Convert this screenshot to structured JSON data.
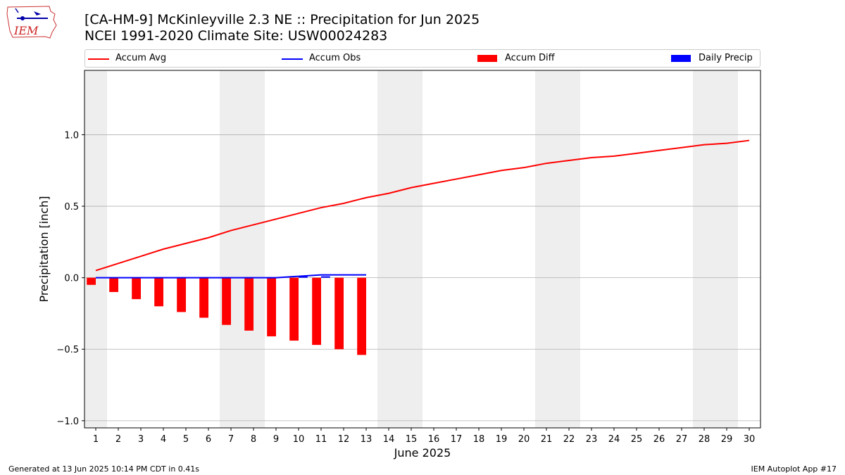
{
  "header": {
    "title_line1": "[CA-HM-9] McKinleyville 2.3 NE :: Precipitation for Jun 2025",
    "title_line2": "NCEI 1991-2020 Climate Site: USW00024283"
  },
  "logo": {
    "text": "IEM",
    "icon": "iem-iowa-state-logo-icon"
  },
  "footer": {
    "left": "Generated at 13 Jun 2025 10:14 PM CDT in 0.41s",
    "right": "IEM Autoplot App #17"
  },
  "colors": {
    "accum_avg": "#ff0000",
    "accum_obs": "#0000ff",
    "accum_diff": "#ff0000",
    "daily_precip": "#0000ff",
    "weekend_shade": "#eeeeee",
    "grid": "#b0b0b0"
  },
  "chart_data": {
    "type": "bar",
    "xlabel": "June 2025",
    "ylabel": "Precipitation [inch]",
    "ylim": [
      -1.05,
      1.45
    ],
    "xlim": [
      0.5,
      30.5
    ],
    "x_ticks": [
      1,
      2,
      3,
      4,
      5,
      6,
      7,
      8,
      9,
      10,
      11,
      12,
      13,
      14,
      15,
      16,
      17,
      18,
      19,
      20,
      21,
      22,
      23,
      24,
      25,
      26,
      27,
      28,
      29,
      30
    ],
    "y_ticks": [
      -1.0,
      -0.5,
      0.0,
      0.5,
      1.0
    ],
    "y_tick_labels": [
      "−1.0",
      "−0.5",
      "0.0",
      "0.5",
      "1.0"
    ],
    "grid": "horizontal",
    "legend_position": "top",
    "weekend_shaded_days": [
      1,
      7,
      8,
      14,
      15,
      21,
      22,
      28,
      29
    ],
    "series": [
      {
        "name": "Accum Avg",
        "kind": "line",
        "x": [
          1,
          2,
          3,
          4,
          5,
          6,
          7,
          8,
          9,
          10,
          11,
          12,
          13,
          14,
          15,
          16,
          17,
          18,
          19,
          20,
          21,
          22,
          23,
          24,
          25,
          26,
          27,
          28,
          29,
          30
        ],
        "values": [
          0.05,
          0.1,
          0.15,
          0.2,
          0.24,
          0.28,
          0.33,
          0.37,
          0.41,
          0.45,
          0.49,
          0.52,
          0.56,
          0.59,
          0.63,
          0.66,
          0.69,
          0.72,
          0.75,
          0.77,
          0.8,
          0.82,
          0.84,
          0.85,
          0.87,
          0.89,
          0.91,
          0.93,
          0.94,
          0.96
        ]
      },
      {
        "name": "Accum Obs",
        "kind": "line",
        "x": [
          1,
          2,
          3,
          4,
          5,
          6,
          7,
          8,
          9,
          10,
          11,
          12,
          13
        ],
        "values": [
          0.0,
          0.0,
          0.0,
          0.0,
          0.0,
          0.0,
          0.0,
          0.0,
          0.0,
          0.01,
          0.02,
          0.02,
          0.02
        ]
      },
      {
        "name": "Accum Diff",
        "kind": "bar",
        "x": [
          1,
          2,
          3,
          4,
          5,
          6,
          7,
          8,
          9,
          10,
          11,
          12,
          13
        ],
        "values": [
          -0.05,
          -0.1,
          -0.15,
          -0.2,
          -0.24,
          -0.28,
          -0.33,
          -0.37,
          -0.41,
          -0.44,
          -0.47,
          -0.5,
          -0.54
        ]
      },
      {
        "name": "Daily Precip",
        "kind": "bar",
        "x": [
          1,
          2,
          3,
          4,
          5,
          6,
          7,
          8,
          9,
          10,
          11,
          12,
          13
        ],
        "values": [
          0.0,
          0.0,
          0.0,
          0.0,
          0.0,
          0.0,
          0.0,
          0.0,
          0.0,
          0.01,
          0.01,
          0.0,
          0.0
        ]
      }
    ]
  }
}
